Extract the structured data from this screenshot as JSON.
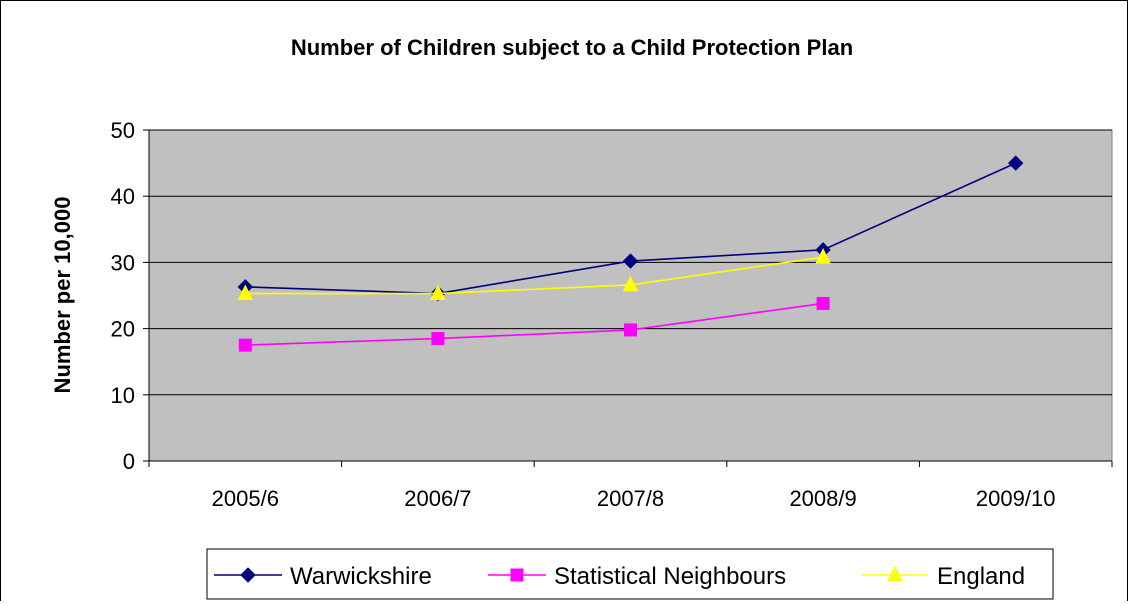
{
  "chart_data": {
    "type": "line",
    "title": "Number of Children subject to a Child Protection Plan",
    "ylabel": "Number per 10,000",
    "xlabel": "",
    "categories": [
      "2005/6",
      "2006/7",
      "2007/8",
      "2008/9",
      "2009/10"
    ],
    "ylim": [
      0,
      50
    ],
    "yticks": [
      0,
      10,
      20,
      30,
      40,
      50
    ],
    "grid": true,
    "legend_position": "bottom",
    "plot_background": "#c0c0c0",
    "series": [
      {
        "name": "Warwickshire",
        "color": "#000080",
        "marker": "diamond",
        "values": [
          26.3,
          25.3,
          30.2,
          31.9,
          45.0
        ]
      },
      {
        "name": "Statistical Neighbours",
        "color": "#ff00ff",
        "marker": "square",
        "values": [
          17.5,
          18.5,
          19.8,
          23.8,
          null
        ]
      },
      {
        "name": "England",
        "color": "#ffff00",
        "marker": "triangle",
        "values": [
          25.3,
          25.3,
          26.6,
          30.8,
          null
        ]
      }
    ]
  }
}
